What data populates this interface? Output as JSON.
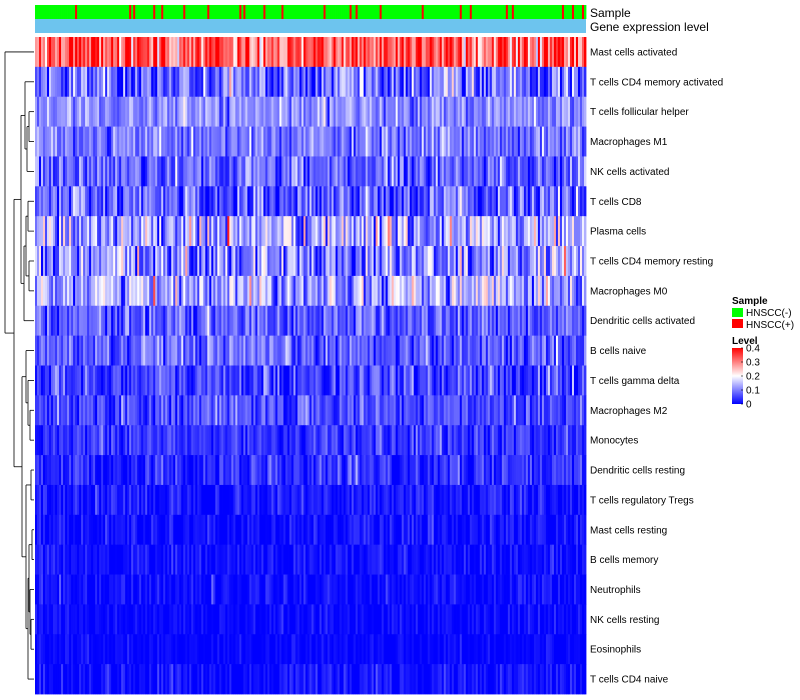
{
  "chart_data": {
    "type": "heatmap",
    "title": "",
    "annotations": [
      {
        "name": "Sample",
        "label": "Sample"
      },
      {
        "name": "Gene expression level",
        "label": "Gene expression level"
      }
    ],
    "rows": [
      {
        "label": "Mast cells activated",
        "mean": 0.33,
        "sd": 0.07
      },
      {
        "label": "T cells CD4 memory activated",
        "mean": 0.08,
        "sd": 0.06
      },
      {
        "label": "T cells follicular helper",
        "mean": 0.11,
        "sd": 0.035
      },
      {
        "label": "Macrophages M1",
        "mean": 0.09,
        "sd": 0.04
      },
      {
        "label": "NK cells activated",
        "mean": 0.08,
        "sd": 0.045
      },
      {
        "label": "T cells CD8",
        "mean": 0.07,
        "sd": 0.06
      },
      {
        "label": "Plasma cells",
        "mean": 0.13,
        "sd": 0.07
      },
      {
        "label": "T cells CD4 memory resting",
        "mean": 0.1,
        "sd": 0.07
      },
      {
        "label": "Macrophages M0",
        "mean": 0.14,
        "sd": 0.06
      },
      {
        "label": "Dendritic cells activated",
        "mean": 0.07,
        "sd": 0.04
      },
      {
        "label": "B cells naive",
        "mean": 0.07,
        "sd": 0.04
      },
      {
        "label": "T cells gamma delta",
        "mean": 0.05,
        "sd": 0.04
      },
      {
        "label": "Macrophages M2",
        "mean": 0.06,
        "sd": 0.035
      },
      {
        "label": "Monocytes",
        "mean": 0.04,
        "sd": 0.03
      },
      {
        "label": "Dendritic cells resting",
        "mean": 0.03,
        "sd": 0.03
      },
      {
        "label": "T cells regulatory  Tregs",
        "mean": 0.02,
        "sd": 0.025
      },
      {
        "label": "Mast cells resting",
        "mean": 0.01,
        "sd": 0.02
      },
      {
        "label": "B cells memory",
        "mean": 0.01,
        "sd": 0.02
      },
      {
        "label": "Neutrophils",
        "mean": 0.01,
        "sd": 0.02
      },
      {
        "label": "NK cells resting",
        "mean": 0.006,
        "sd": 0.015
      },
      {
        "label": "Eosinophils",
        "mean": 0.005,
        "sd": 0.012
      },
      {
        "label": "T cells CD4 naive",
        "mean": 0.01,
        "sd": 0.02
      }
    ],
    "n_samples": 275,
    "sample_group_fraction_positive": 0.12,
    "color_scale": {
      "title": "Level",
      "min": 0,
      "max": 0.4,
      "ticks": [
        0.4,
        0.3,
        0.2,
        0.1,
        0
      ],
      "tick_labels": [
        "0.4",
        "0.3",
        "0.2",
        "0.1",
        "0"
      ],
      "low_color": "#0000ff",
      "mid_color": "#ffffff",
      "high_color": "#ff0000",
      "mid_value": 0.2
    },
    "sample_legend": {
      "title": "Sample",
      "entries": [
        {
          "label": "HNSCC(-)",
          "color": "#00ff00"
        },
        {
          "label": "HNSCC(+)",
          "color": "#ff0000"
        }
      ]
    },
    "gene_expression_color": "#6dc4ee",
    "dendrogram_color": "#000000"
  }
}
